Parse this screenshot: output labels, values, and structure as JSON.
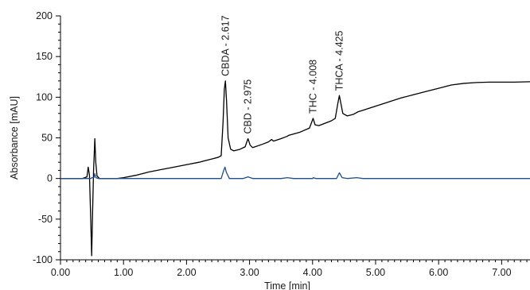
{
  "chart_data": {
    "type": "line",
    "title": "",
    "xlabel": "Time [min]",
    "ylabel": "Absorbance [mAU]",
    "xlim": [
      0,
      7.45
    ],
    "ylim": [
      -100,
      200
    ],
    "x_ticks": [
      "0.00",
      "1.00",
      "2.00",
      "3.00",
      "4.00",
      "5.00",
      "6.00",
      "7.00"
    ],
    "y_ticks": [
      "-100",
      "-50",
      "0",
      "50",
      "100",
      "150",
      "200"
    ],
    "grid": false,
    "series": [
      {
        "color": "#000000",
        "points": [
          [
            0.0,
            0
          ],
          [
            0.35,
            0
          ],
          [
            0.42,
            2
          ],
          [
            0.44,
            14
          ],
          [
            0.46,
            4
          ],
          [
            0.48,
            -50
          ],
          [
            0.495,
            -95
          ],
          [
            0.51,
            -40
          ],
          [
            0.525,
            10
          ],
          [
            0.545,
            49
          ],
          [
            0.56,
            20
          ],
          [
            0.58,
            3
          ],
          [
            0.62,
            0
          ],
          [
            0.9,
            0
          ],
          [
            1.0,
            1
          ],
          [
            1.2,
            4
          ],
          [
            1.4,
            8
          ],
          [
            1.6,
            11
          ],
          [
            1.8,
            14
          ],
          [
            2.0,
            17
          ],
          [
            2.2,
            20
          ],
          [
            2.4,
            24
          ],
          [
            2.5,
            26
          ],
          [
            2.55,
            28
          ],
          [
            2.58,
            70
          ],
          [
            2.6,
            110
          ],
          [
            2.617,
            120
          ],
          [
            2.635,
            95
          ],
          [
            2.66,
            50
          ],
          [
            2.7,
            36
          ],
          [
            2.75,
            34
          ],
          [
            2.85,
            36
          ],
          [
            2.93,
            39
          ],
          [
            2.975,
            49
          ],
          [
            3.01,
            41
          ],
          [
            3.05,
            38
          ],
          [
            3.2,
            42
          ],
          [
            3.3,
            45
          ],
          [
            3.35,
            48
          ],
          [
            3.38,
            46
          ],
          [
            3.5,
            49
          ],
          [
            3.6,
            52
          ],
          [
            3.62,
            53
          ],
          [
            3.8,
            57
          ],
          [
            3.95,
            62
          ],
          [
            3.98,
            68
          ],
          [
            4.008,
            74
          ],
          [
            4.04,
            66
          ],
          [
            4.1,
            65
          ],
          [
            4.3,
            71
          ],
          [
            4.36,
            74
          ],
          [
            4.4,
            92
          ],
          [
            4.425,
            102
          ],
          [
            4.45,
            92
          ],
          [
            4.48,
            80
          ],
          [
            4.55,
            77
          ],
          [
            4.65,
            79
          ],
          [
            4.72,
            82
          ],
          [
            4.8,
            84
          ],
          [
            5.0,
            89
          ],
          [
            5.2,
            94
          ],
          [
            5.4,
            99
          ],
          [
            5.6,
            103
          ],
          [
            5.8,
            107
          ],
          [
            6.0,
            111
          ],
          [
            6.2,
            115
          ],
          [
            6.4,
            117
          ],
          [
            6.6,
            118
          ],
          [
            6.8,
            118.5
          ],
          [
            7.0,
            118.5
          ],
          [
            7.2,
            118.5
          ],
          [
            7.45,
            119
          ]
        ]
      },
      {
        "color": "#1f4e8c",
        "points": [
          [
            0.0,
            0
          ],
          [
            0.48,
            0
          ],
          [
            0.5,
            1
          ],
          [
            0.53,
            1
          ],
          [
            0.545,
            6
          ],
          [
            0.56,
            1
          ],
          [
            0.6,
            0
          ],
          [
            2.55,
            0
          ],
          [
            2.59,
            10
          ],
          [
            2.61,
            14
          ],
          [
            2.63,
            8
          ],
          [
            2.68,
            0
          ],
          [
            2.9,
            0
          ],
          [
            2.975,
            2
          ],
          [
            3.05,
            0
          ],
          [
            3.5,
            0
          ],
          [
            3.6,
            1
          ],
          [
            3.7,
            0
          ],
          [
            4.0,
            0
          ],
          [
            4.01,
            1
          ],
          [
            4.05,
            0
          ],
          [
            4.38,
            0
          ],
          [
            4.425,
            7
          ],
          [
            4.47,
            1
          ],
          [
            4.55,
            0
          ],
          [
            4.7,
            1
          ],
          [
            4.8,
            0
          ],
          [
            6.2,
            0
          ],
          [
            7.45,
            0
          ]
        ]
      }
    ],
    "annotations": [
      {
        "x": 2.617,
        "y": 120,
        "text": "CBDA - 2.617"
      },
      {
        "x": 2.975,
        "y": 49,
        "text": "CBD - 2.975"
      },
      {
        "x": 4.008,
        "y": 74,
        "text": "THC - 4.008"
      },
      {
        "x": 4.425,
        "y": 102,
        "text": "THCA - 4.425"
      }
    ]
  }
}
